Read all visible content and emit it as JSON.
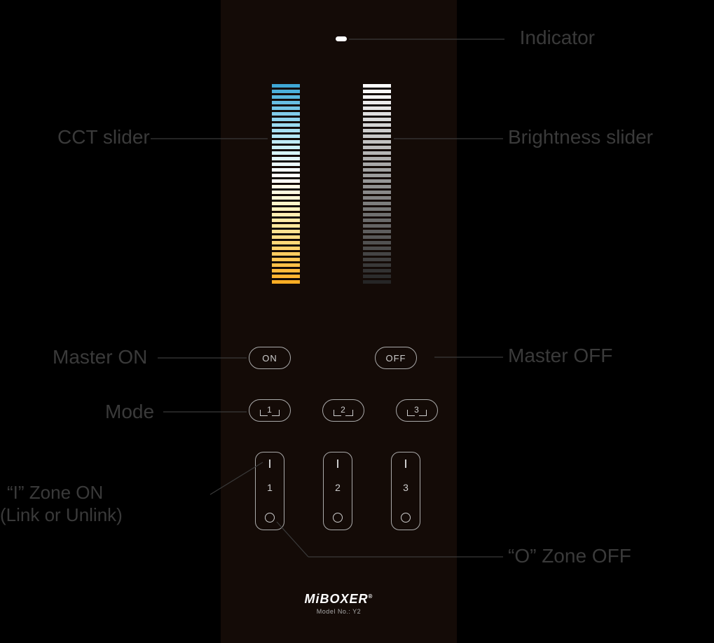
{
  "remote": {
    "background_color": "#140b07",
    "indicator_color": "#ffffff",
    "brand_logo": "MiBOXER",
    "model_label": "Model No.: Y2"
  },
  "cct_slider": {
    "segment_count": 36,
    "colors_top_to_bottom": [
      "#3fa7d6",
      "#4cafdb",
      "#5ab7df",
      "#67bee3",
      "#74c5e6",
      "#81ccea",
      "#8ed3ed",
      "#9adaf0",
      "#a7e0f3",
      "#b3e6f5",
      "#bfebf7",
      "#cbf0f9",
      "#d6f4fa",
      "#e1f7fb",
      "#ebfafc",
      "#f5fcfd",
      "#ffffff",
      "#fffef5",
      "#fffdea",
      "#fffbe0",
      "#fff9d5",
      "#fff6ca",
      "#fff3bf",
      "#ffefb4",
      "#ffeba8",
      "#ffe79c",
      "#ffe290",
      "#ffdd84",
      "#ffd878",
      "#ffd26c",
      "#ffcc60",
      "#ffc654",
      "#ffc048",
      "#ffba3c",
      "#ffb430",
      "#ffae24"
    ]
  },
  "brightness_slider": {
    "segment_count": 36,
    "top_color": "#ffffff",
    "bottom_color": "#262626"
  },
  "buttons": {
    "on_label": "ON",
    "off_label": "OFF",
    "mode_numbers": [
      "1",
      "2",
      "3"
    ],
    "zone_numbers": [
      "1",
      "2",
      "3"
    ]
  },
  "callouts": {
    "indicator": "Indicator",
    "cct_slider": "CCT slider",
    "brightness_slider": "Brightness slider",
    "master_on": "Master ON",
    "master_off": "Master OFF",
    "mode": "Mode",
    "zone_on_line1": "“I”   Zone ON",
    "zone_on_line2": "(Link or Unlink)",
    "zone_off": "“O”   Zone OFF"
  },
  "style": {
    "label_color": "#3a3a3a",
    "leader_color": "#3a3a3a",
    "button_border_color": "#aaaaaa",
    "button_text_color": "#cccccc"
  }
}
